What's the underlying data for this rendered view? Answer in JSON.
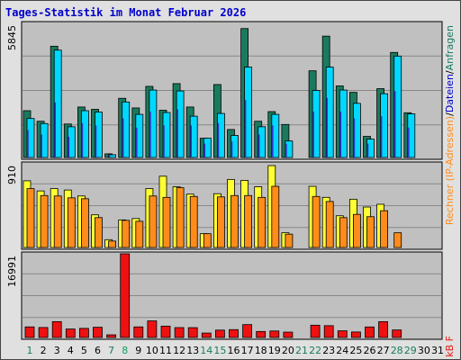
{
  "chart_data": {
    "type": "bar",
    "title": "Tages-Statistik im Monat Februar 2026",
    "categories": [
      "1",
      "2",
      "3",
      "4",
      "5",
      "6",
      "7",
      "8",
      "9",
      "10",
      "11",
      "12",
      "13",
      "14",
      "15",
      "16",
      "17",
      "18",
      "19",
      "20",
      "21",
      "22",
      "23",
      "24",
      "25",
      "26",
      "27",
      "28",
      "29",
      "30",
      "31"
    ],
    "weekend_days": [
      "1",
      "7",
      "8",
      "14",
      "15",
      "21",
      "22",
      "28",
      "29"
    ],
    "highlight_day": "8",
    "panels": [
      {
        "name": "top",
        "max_label": "5845",
        "ylim": [
          0,
          5845
        ],
        "series": [
          {
            "name": "Anfragen",
            "color": "#1a7a5e",
            "values": [
              2040,
              1580,
              4850,
              1460,
              2200,
              2100,
              160,
              2580,
              2160,
              3100,
              2060,
              3220,
              2200,
              840,
              3180,
              1220,
              5620,
              1580,
              2000,
              1440,
              0,
              3780,
              5290,
              3120,
              2840,
              920,
              3000,
              4580,
              1950,
              0,
              0
            ]
          },
          {
            "name": "Dateien",
            "color": "#00d8ff",
            "values": [
              1700,
              1480,
              4680,
              1340,
              2040,
              1980,
              120,
              2420,
              1880,
              2940,
              1960,
              2900,
              1800,
              840,
              1920,
              960,
              3940,
              1340,
              1880,
              720,
              0,
              2920,
              3940,
              2940,
              2360,
              800,
              2780,
              4420,
              1900,
              0,
              0
            ]
          },
          {
            "name": "Seiten",
            "color": "#3333cc",
            "values": [
              1200,
              1000,
              2400,
              900,
              1500,
              1400,
              90,
              1700,
              1300,
              2000,
              1400,
              2100,
              1400,
              600,
              1500,
              700,
              2500,
              1000,
              1400,
              600,
              0,
              2000,
              2600,
              2000,
              1700,
              600,
              1800,
              2900,
              1300,
              0,
              0
            ]
          }
        ],
        "legend": [
          "Dateien",
          "Anfragen"
        ]
      },
      {
        "name": "middle",
        "max_label": "910",
        "ylim": [
          0,
          910
        ],
        "series": [
          {
            "name": "Rechner (IP-Adressen)",
            "color": "#ffff33",
            "values": [
              725,
              615,
              640,
              625,
              560,
              355,
              85,
              300,
              315,
              640,
              775,
              660,
              580,
              150,
              585,
              740,
              730,
              660,
              890,
              160,
              0,
              665,
              545,
              345,
              525,
              440,
              470,
              0,
              0,
              0,
              0
            ]
          },
          {
            "name": "Besuche",
            "color": "#ff8c1a",
            "values": [
              640,
              565,
              560,
              540,
              530,
              325,
              70,
              295,
              285,
              560,
              545,
              650,
              555,
              150,
              550,
              565,
              565,
              545,
              665,
              145,
              0,
              555,
              500,
              325,
              360,
              335,
              400,
              160,
              0,
              0,
              0
            ]
          }
        ],
        "legend": [
          "Rechner (IP-Adressen)"
        ]
      },
      {
        "name": "bottom",
        "max_label": "16991",
        "ylim": [
          0,
          16991
        ],
        "series": [
          {
            "name": "kB F",
            "color": "#ee1111",
            "values": [
              2150,
              2030,
              3220,
              1720,
              1850,
              2080,
              540,
              16991,
              2150,
              3370,
              2310,
              2010,
              2000,
              900,
              1500,
              1600,
              2620,
              1220,
              1320,
              1090,
              0,
              2500,
              2400,
              1360,
              1120,
              2140,
              3220,
              1530,
              0,
              0,
              0
            ]
          }
        ],
        "legend": [
          "kB F"
        ]
      }
    ]
  }
}
